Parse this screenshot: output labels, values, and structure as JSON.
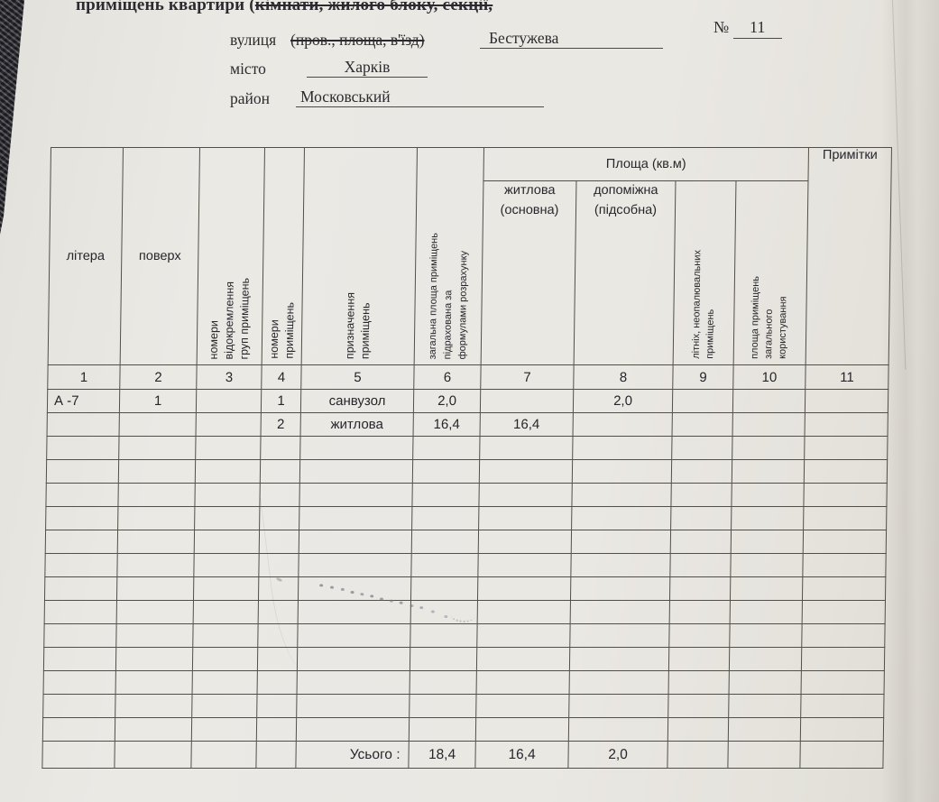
{
  "header": {
    "title_prefix": "приміщень квартири (",
    "title_struck": "кімнати, жилого блоку, секції,",
    "number_label": "№",
    "number_value": "11",
    "fields": {
      "street": {
        "label": "вулиця",
        "struck": "(пров., площа, в'їзд)",
        "value": "Бестужева"
      },
      "city": {
        "label": "місто",
        "value": "Харків"
      },
      "district": {
        "label": "район",
        "value": "Московський"
      }
    }
  },
  "table": {
    "area_group_header": "Площа (кв.м)",
    "headers": {
      "col1": "літера",
      "col2": "поверх",
      "col3": "номери\nвідокремлення\nгруп приміщень",
      "col4": "номери\nприміщень",
      "col5": "призначення\nприміщень",
      "col6": "загальна площа приміщень\nпідрахована за\nформулами розрахунку",
      "col7": "житлова\n(основна)",
      "col8": "допоміжна\n(підсобна)",
      "col9": "літніх, неопалювальних\nприміщень",
      "col10": "площа приміщень\nзагального\nкористування",
      "col11": "Примітки"
    },
    "column_numbers": [
      "1",
      "2",
      "3",
      "4",
      "5",
      "6",
      "7",
      "8",
      "9",
      "10",
      "11"
    ],
    "rows": [
      [
        "А -7",
        "1",
        "",
        "1",
        "санвузол",
        "2,0",
        "",
        "2,0",
        "",
        "",
        ""
      ],
      [
        "",
        "",
        "",
        "2",
        "житлова",
        "16,4",
        "16,4",
        "",
        "",
        "",
        ""
      ],
      [
        "",
        "",
        "",
        "",
        "",
        "",
        "",
        "",
        "",
        "",
        ""
      ],
      [
        "",
        "",
        "",
        "",
        "",
        "",
        "",
        "",
        "",
        "",
        ""
      ],
      [
        "",
        "",
        "",
        "",
        "",
        "",
        "",
        "",
        "",
        "",
        ""
      ],
      [
        "",
        "",
        "",
        "",
        "",
        "",
        "",
        "",
        "",
        "",
        ""
      ],
      [
        "",
        "",
        "",
        "",
        "",
        "",
        "",
        "",
        "",
        "",
        ""
      ],
      [
        "",
        "",
        "",
        "",
        "",
        "",
        "",
        "",
        "",
        "",
        ""
      ],
      [
        "",
        "",
        "",
        "",
        "",
        "",
        "",
        "",
        "",
        "",
        ""
      ],
      [
        "",
        "",
        "",
        "",
        "",
        "",
        "",
        "",
        "",
        "",
        ""
      ],
      [
        "",
        "",
        "",
        "",
        "",
        "",
        "",
        "",
        "",
        "",
        ""
      ],
      [
        "",
        "",
        "",
        "",
        "",
        "",
        "",
        "",
        "",
        "",
        ""
      ],
      [
        "",
        "",
        "",
        "",
        "",
        "",
        "",
        "",
        "",
        "",
        ""
      ],
      [
        "",
        "",
        "",
        "",
        "",
        "",
        "",
        "",
        "",
        "",
        ""
      ],
      [
        "",
        "",
        "",
        "",
        "",
        "",
        "",
        "",
        "",
        "",
        ""
      ]
    ],
    "totals_row": [
      "",
      "",
      "",
      "",
      "Усього :",
      "18,4",
      "16,4",
      "2,0",
      "",
      "",
      ""
    ]
  }
}
